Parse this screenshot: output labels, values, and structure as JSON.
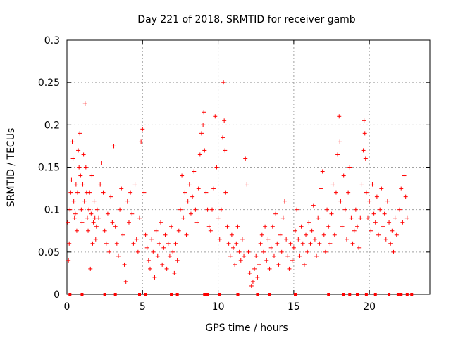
{
  "chart_data": {
    "type": "scatter",
    "title": "Day 221 of 2018, SRMTID for receiver gamb",
    "xlabel": "GPS time / hours",
    "ylabel": "SRMTID / TECUs",
    "xlim": [
      0,
      24
    ],
    "ylim": [
      0,
      0.3
    ],
    "xticks": [
      0,
      5,
      10,
      15,
      20
    ],
    "xtick_labels": [
      "0",
      "5",
      "10",
      "15",
      "20"
    ],
    "yticks": [
      0,
      0.05,
      0.1,
      0.15,
      0.2,
      0.25,
      0.3
    ],
    "ytick_labels": [
      "0",
      "0.05",
      "0.1",
      "0.15",
      "0.2",
      "0.25",
      "0.3"
    ],
    "grid": true,
    "marker": "+",
    "color": "#ff0000",
    "series": [
      {
        "name": "SRMTID",
        "points": [
          [
            0.05,
            0.085
          ],
          [
            0.1,
            0.04
          ],
          [
            0.15,
            0.06
          ],
          [
            0.2,
            0.1
          ],
          [
            0.25,
            0.12
          ],
          [
            0.3,
            0.135
          ],
          [
            0.35,
            0.18
          ],
          [
            0.4,
            0.16
          ],
          [
            0.45,
            0.11
          ],
          [
            0.5,
            0.09
          ],
          [
            0.55,
            0.095
          ],
          [
            0.6,
            0.13
          ],
          [
            0.65,
            0.075
          ],
          [
            0.7,
            0.12
          ],
          [
            0.75,
            0.17
          ],
          [
            0.8,
            0.15
          ],
          [
            0.85,
            0.19
          ],
          [
            0.9,
            0.14
          ],
          [
            0.95,
            0.1
          ],
          [
            1.0,
            0.085
          ],
          [
            1.05,
            0.13
          ],
          [
            1.1,
            0.165
          ],
          [
            1.15,
            0.11
          ],
          [
            1.2,
            0.225
          ],
          [
            1.25,
            0.15
          ],
          [
            1.3,
            0.12
          ],
          [
            1.35,
            0.09
          ],
          [
            1.4,
            0.075
          ],
          [
            1.45,
            0.1
          ],
          [
            1.5,
            0.12
          ],
          [
            1.55,
            0.03
          ],
          [
            1.6,
            0.095
          ],
          [
            1.65,
            0.14
          ],
          [
            1.7,
            0.06
          ],
          [
            1.75,
            0.085
          ],
          [
            1.8,
            0.11
          ],
          [
            1.85,
            0.09
          ],
          [
            1.9,
            0.065
          ],
          [
            1.95,
            0.08
          ],
          [
            2.0,
            0.1
          ],
          [
            2.1,
            0.09
          ],
          [
            2.2,
            0.13
          ],
          [
            2.3,
            0.155
          ],
          [
            2.4,
            0.12
          ],
          [
            2.5,
            0.075
          ],
          [
            2.6,
            0.06
          ],
          [
            2.7,
            0.095
          ],
          [
            2.8,
            0.05
          ],
          [
            2.9,
            0.115
          ],
          [
            3.0,
            0.085
          ],
          [
            3.1,
            0.175
          ],
          [
            3.2,
            0.08
          ],
          [
            3.3,
            0.06
          ],
          [
            3.4,
            0.045
          ],
          [
            3.5,
            0.1
          ],
          [
            3.6,
            0.125
          ],
          [
            3.7,
            0.07
          ],
          [
            3.8,
            0.035
          ],
          [
            3.9,
            0.015
          ],
          [
            4.0,
            0.11
          ],
          [
            4.1,
            0.085
          ],
          [
            4.2,
            0.12
          ],
          [
            4.3,
            0.095
          ],
          [
            4.4,
            0.06
          ],
          [
            4.5,
            0.13
          ],
          [
            4.6,
            0.065
          ],
          [
            4.7,
            0.05
          ],
          [
            4.8,
            0.09
          ],
          [
            4.9,
            0.18
          ],
          [
            5.0,
            0.195
          ],
          [
            5.1,
            0.12
          ],
          [
            5.2,
            0.07
          ],
          [
            5.3,
            0.055
          ],
          [
            5.4,
            0.04
          ],
          [
            5.5,
            0.03
          ],
          [
            5.6,
            0.065
          ],
          [
            5.7,
            0.05
          ],
          [
            5.8,
            0.02
          ],
          [
            5.9,
            0.075
          ],
          [
            6.0,
            0.045
          ],
          [
            6.1,
            0.06
          ],
          [
            6.2,
            0.085
          ],
          [
            6.3,
            0.035
          ],
          [
            6.4,
            0.055
          ],
          [
            6.5,
            0.07
          ],
          [
            6.6,
            0.03
          ],
          [
            6.7,
            0.06
          ],
          [
            6.8,
            0.045
          ],
          [
            6.9,
            0.08
          ],
          [
            7.0,
            0.05
          ],
          [
            7.1,
            0.025
          ],
          [
            7.2,
            0.06
          ],
          [
            7.3,
            0.04
          ],
          [
            7.4,
            0.075
          ],
          [
            7.5,
            0.1
          ],
          [
            7.6,
            0.14
          ],
          [
            7.7,
            0.09
          ],
          [
            7.8,
            0.12
          ],
          [
            7.9,
            0.07
          ],
          [
            8.0,
            0.11
          ],
          [
            8.1,
            0.13
          ],
          [
            8.2,
            0.095
          ],
          [
            8.3,
            0.115
          ],
          [
            8.4,
            0.145
          ],
          [
            8.5,
            0.1
          ],
          [
            8.6,
            0.085
          ],
          [
            8.7,
            0.125
          ],
          [
            8.8,
            0.165
          ],
          [
            8.9,
            0.19
          ],
          [
            9.0,
            0.2
          ],
          [
            9.05,
            0.215
          ],
          [
            9.1,
            0.17
          ],
          [
            9.2,
            0.12
          ],
          [
            9.3,
            0.1
          ],
          [
            9.4,
            0.08
          ],
          [
            9.5,
            0.075
          ],
          [
            9.6,
            0.1
          ],
          [
            9.7,
            0.125
          ],
          [
            9.8,
            0.21
          ],
          [
            9.9,
            0.15
          ],
          [
            10.0,
            0.09
          ],
          [
            10.1,
            0.065
          ],
          [
            10.2,
            0.1
          ],
          [
            10.3,
            0.185
          ],
          [
            10.35,
            0.25
          ],
          [
            10.4,
            0.205
          ],
          [
            10.45,
            0.17
          ],
          [
            10.5,
            0.12
          ],
          [
            10.6,
            0.08
          ],
          [
            10.7,
            0.06
          ],
          [
            10.8,
            0.045
          ],
          [
            10.9,
            0.07
          ],
          [
            11.0,
            0.055
          ],
          [
            11.1,
            0.035
          ],
          [
            11.2,
            0.06
          ],
          [
            11.3,
            0.08
          ],
          [
            11.4,
            0.05
          ],
          [
            11.5,
            0.04
          ],
          [
            11.6,
            0.065
          ],
          [
            11.7,
            0.045
          ],
          [
            11.8,
            0.16
          ],
          [
            11.9,
            0.13
          ],
          [
            12.0,
            0.05
          ],
          [
            12.1,
            0.025
          ],
          [
            12.2,
            0.01
          ],
          [
            12.3,
            0.015
          ],
          [
            12.4,
            0.03
          ],
          [
            12.5,
            0.045
          ],
          [
            12.6,
            0.02
          ],
          [
            12.7,
            0.035
          ],
          [
            12.8,
            0.06
          ],
          [
            12.9,
            0.07
          ],
          [
            13.0,
            0.05
          ],
          [
            13.1,
            0.08
          ],
          [
            13.2,
            0.04
          ],
          [
            13.3,
            0.065
          ],
          [
            13.4,
            0.03
          ],
          [
            13.5,
            0.055
          ],
          [
            13.6,
            0.08
          ],
          [
            13.7,
            0.045
          ],
          [
            13.8,
            0.095
          ],
          [
            13.9,
            0.06
          ],
          [
            14.0,
            0.035
          ],
          [
            14.1,
            0.07
          ],
          [
            14.2,
            0.05
          ],
          [
            14.3,
            0.09
          ],
          [
            14.4,
            0.11
          ],
          [
            14.5,
            0.065
          ],
          [
            14.6,
            0.045
          ],
          [
            14.7,
            0.03
          ],
          [
            14.8,
            0.06
          ],
          [
            14.9,
            0.04
          ],
          [
            15.0,
            0.055
          ],
          [
            15.1,
            0.075
          ],
          [
            15.2,
            0.1
          ],
          [
            15.3,
            0.065
          ],
          [
            15.4,
            0.045
          ],
          [
            15.5,
            0.08
          ],
          [
            15.6,
            0.06
          ],
          [
            15.7,
            0.035
          ],
          [
            15.8,
            0.07
          ],
          [
            15.9,
            0.05
          ],
          [
            16.0,
            0.085
          ],
          [
            16.1,
            0.06
          ],
          [
            16.2,
            0.075
          ],
          [
            16.3,
            0.105
          ],
          [
            16.4,
            0.065
          ],
          [
            16.5,
            0.045
          ],
          [
            16.6,
            0.09
          ],
          [
            16.7,
            0.06
          ],
          [
            16.8,
            0.125
          ],
          [
            16.9,
            0.145
          ],
          [
            17.0,
            0.07
          ],
          [
            17.1,
            0.05
          ],
          [
            17.2,
            0.1
          ],
          [
            17.3,
            0.08
          ],
          [
            17.4,
            0.06
          ],
          [
            17.5,
            0.095
          ],
          [
            17.6,
            0.13
          ],
          [
            17.7,
            0.07
          ],
          [
            17.8,
            0.12
          ],
          [
            17.9,
            0.165
          ],
          [
            18.0,
            0.21
          ],
          [
            18.05,
            0.18
          ],
          [
            18.1,
            0.11
          ],
          [
            18.2,
            0.08
          ],
          [
            18.3,
            0.14
          ],
          [
            18.4,
            0.1
          ],
          [
            18.5,
            0.065
          ],
          [
            18.6,
            0.12
          ],
          [
            18.7,
            0.15
          ],
          [
            18.8,
            0.09
          ],
          [
            18.9,
            0.06
          ],
          [
            19.0,
            0.075
          ],
          [
            19.1,
            0.1
          ],
          [
            19.2,
            0.08
          ],
          [
            19.3,
            0.055
          ],
          [
            19.4,
            0.09
          ],
          [
            19.5,
            0.13
          ],
          [
            19.6,
            0.17
          ],
          [
            19.65,
            0.205
          ],
          [
            19.7,
            0.19
          ],
          [
            19.75,
            0.16
          ],
          [
            19.8,
            0.12
          ],
          [
            19.9,
            0.09
          ],
          [
            20.0,
            0.11
          ],
          [
            20.1,
            0.075
          ],
          [
            20.2,
            0.13
          ],
          [
            20.3,
            0.095
          ],
          [
            20.4,
            0.085
          ],
          [
            20.5,
            0.115
          ],
          [
            20.6,
            0.07
          ],
          [
            20.7,
            0.1
          ],
          [
            20.8,
            0.125
          ],
          [
            20.9,
            0.08
          ],
          [
            21.0,
            0.095
          ],
          [
            21.1,
            0.065
          ],
          [
            21.2,
            0.11
          ],
          [
            21.3,
            0.085
          ],
          [
            21.4,
            0.06
          ],
          [
            21.5,
            0.075
          ],
          [
            21.6,
            0.05
          ],
          [
            21.7,
            0.09
          ],
          [
            21.8,
            0.07
          ],
          [
            22.0,
            0.1
          ],
          [
            22.1,
            0.125
          ],
          [
            22.2,
            0.085
          ],
          [
            22.3,
            0.14
          ],
          [
            22.4,
            0.115
          ],
          [
            22.5,
            0.09
          ]
        ]
      }
    ],
    "zero_markers_x": [
      0.2,
      1.0,
      2.5,
      3.2,
      4.8,
      5.2,
      6.9,
      7.3,
      9.1,
      9.3,
      10.1,
      11.3,
      12.6,
      13.4,
      15.1,
      17.3,
      18.3,
      18.7,
      19.2,
      19.8,
      20.4,
      21.3,
      21.9,
      22.1,
      22.5,
      22.8
    ]
  }
}
